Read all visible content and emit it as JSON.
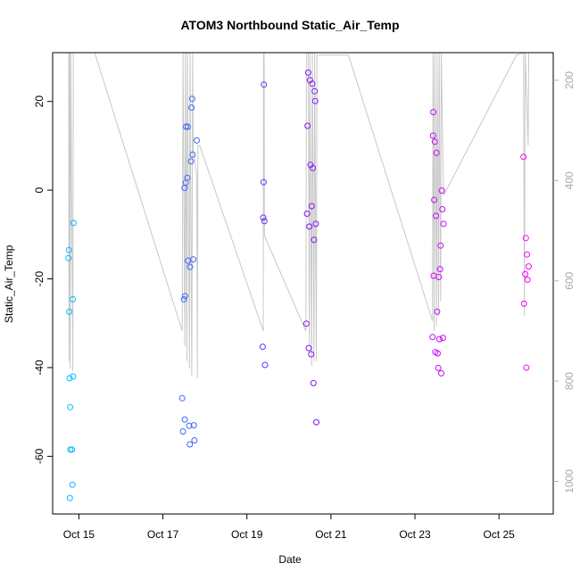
{
  "chart_data": {
    "type": "scatter",
    "title": "ATOM3 Northbound Static_Air_Temp",
    "xlabel": "Date",
    "ylabel": "Static_Air_Temp",
    "x_ticks": [
      "Oct 15",
      "Oct 17",
      "Oct 19",
      "Oct 21",
      "Oct 23",
      "Oct 25"
    ],
    "y_ticks": [
      "-60",
      "-40",
      "-20",
      "0",
      "20"
    ],
    "y_ticks_right": [
      "200",
      "400",
      "600",
      "800",
      "1000"
    ],
    "xlim": [
      "2016-10-14 09:00",
      "2016-10-26 07:00"
    ],
    "ylim": [
      -73,
      31
    ],
    "ylim_right": [
      1065,
      145
    ],
    "grid": false,
    "colors": {
      "points_start": "#00BFFF",
      "points_mid": "#7A18F0",
      "points_end": "#FF00FF",
      "pressure_line": "#C8C8C8"
    },
    "series": [
      {
        "values": [
          {
            "x": "2016-10-14 18:00",
            "y": -15.3
          },
          {
            "x": "2016-10-14 18:20",
            "y": -13.5
          },
          {
            "x": "2016-10-14 18:30",
            "y": -27.4
          },
          {
            "x": "2016-10-14 18:40",
            "y": -42.4
          },
          {
            "x": "2016-10-14 19:00",
            "y": -48.9
          },
          {
            "x": "2016-10-14 19:10",
            "y": -58.5
          },
          {
            "x": "2016-10-14 18:50",
            "y": -69.4
          },
          {
            "x": "2016-10-14 20:00",
            "y": -58.5
          },
          {
            "x": "2016-10-14 20:20",
            "y": -66.4
          },
          {
            "x": "2016-10-14 20:40",
            "y": -42.0
          },
          {
            "x": "2016-10-14 20:30",
            "y": -24.6
          },
          {
            "x": "2016-10-14 21:00",
            "y": -7.4
          },
          {
            "x": "2016-10-17 11:00",
            "y": -46.9
          },
          {
            "x": "2016-10-17 11:30",
            "y": -54.4
          },
          {
            "x": "2016-10-17 12:00",
            "y": -24.6
          },
          {
            "x": "2016-10-17 12:30",
            "y": -51.7
          },
          {
            "x": "2016-10-17 12:40",
            "y": -23.9
          },
          {
            "x": "2016-10-17 12:20",
            "y": 0.5
          },
          {
            "x": "2016-10-17 13:00",
            "y": 1.7
          },
          {
            "x": "2016-10-17 13:10",
            "y": 14.3
          },
          {
            "x": "2016-10-17 14:00",
            "y": 2.8
          },
          {
            "x": "2016-10-17 14:10",
            "y": 14.3
          },
          {
            "x": "2016-10-17 14:20",
            "y": -15.9
          },
          {
            "x": "2016-10-17 15:00",
            "y": -53.1
          },
          {
            "x": "2016-10-17 15:20",
            "y": -57.3
          },
          {
            "x": "2016-10-17 15:30",
            "y": -17.3
          },
          {
            "x": "2016-10-17 16:00",
            "y": 6.5
          },
          {
            "x": "2016-10-17 16:20",
            "y": 18.6
          },
          {
            "x": "2016-10-17 16:40",
            "y": 20.6
          },
          {
            "x": "2016-10-17 17:00",
            "y": 8.0
          },
          {
            "x": "2016-10-17 17:20",
            "y": -15.6
          },
          {
            "x": "2016-10-17 17:40",
            "y": -53.0
          },
          {
            "x": "2016-10-17 18:00",
            "y": -56.4
          },
          {
            "x": "2016-10-17 19:20",
            "y": 11.2
          },
          {
            "x": "2016-10-19 09:00",
            "y": -35.3
          },
          {
            "x": "2016-10-19 09:20",
            "y": -6.2
          },
          {
            "x": "2016-10-19 09:30",
            "y": 1.8
          },
          {
            "x": "2016-10-19 09:40",
            "y": 23.8
          },
          {
            "x": "2016-10-19 10:00",
            "y": -7.0
          },
          {
            "x": "2016-10-19 10:20",
            "y": -39.4
          },
          {
            "x": "2016-10-20 10:00",
            "y": -30.1
          },
          {
            "x": "2016-10-20 10:20",
            "y": -5.3
          },
          {
            "x": "2016-10-20 10:40",
            "y": 14.5
          },
          {
            "x": "2016-10-20 11:00",
            "y": 26.5
          },
          {
            "x": "2016-10-20 11:20",
            "y": -35.6
          },
          {
            "x": "2016-10-20 11:40",
            "y": -8.2
          },
          {
            "x": "2016-10-20 12:00",
            "y": 24.8
          },
          {
            "x": "2016-10-20 12:20",
            "y": 5.7
          },
          {
            "x": "2016-10-20 12:40",
            "y": -37.0
          },
          {
            "x": "2016-10-20 13:00",
            "y": -3.6
          },
          {
            "x": "2016-10-20 13:20",
            "y": 24.0
          },
          {
            "x": "2016-10-20 13:40",
            "y": 5.0
          },
          {
            "x": "2016-10-20 14:00",
            "y": -43.5
          },
          {
            "x": "2016-10-20 14:20",
            "y": -11.2
          },
          {
            "x": "2016-10-20 14:40",
            "y": 22.3
          },
          {
            "x": "2016-10-20 15:00",
            "y": 20.1
          },
          {
            "x": "2016-10-20 15:20",
            "y": -7.6
          },
          {
            "x": "2016-10-20 15:40",
            "y": -52.3
          },
          {
            "x": "2016-10-23 10:00",
            "y": -33.1
          },
          {
            "x": "2016-10-23 10:20",
            "y": 12.3
          },
          {
            "x": "2016-10-23 10:30",
            "y": 17.6
          },
          {
            "x": "2016-10-23 10:40",
            "y": -19.3
          },
          {
            "x": "2016-10-23 11:00",
            "y": -2.2
          },
          {
            "x": "2016-10-23 11:20",
            "y": 10.9
          },
          {
            "x": "2016-10-23 11:40",
            "y": -36.5
          },
          {
            "x": "2016-10-23 12:00",
            "y": -5.8
          },
          {
            "x": "2016-10-23 12:20",
            "y": 8.4
          },
          {
            "x": "2016-10-23 12:40",
            "y": -27.4
          },
          {
            "x": "2016-10-23 13:00",
            "y": -36.8
          },
          {
            "x": "2016-10-23 13:20",
            "y": -40.1
          },
          {
            "x": "2016-10-23 13:40",
            "y": -19.6
          },
          {
            "x": "2016-10-23 14:00",
            "y": -33.6
          },
          {
            "x": "2016-10-23 14:20",
            "y": -17.8
          },
          {
            "x": "2016-10-23 14:40",
            "y": -12.5
          },
          {
            "x": "2016-10-23 15:00",
            "y": -41.3
          },
          {
            "x": "2016-10-23 15:20",
            "y": -0.1
          },
          {
            "x": "2016-10-23 15:40",
            "y": -4.3
          },
          {
            "x": "2016-10-23 16:00",
            "y": -33.3
          },
          {
            "x": "2016-10-23 16:20",
            "y": -7.6
          },
          {
            "x": "2016-10-25 14:00",
            "y": 7.5
          },
          {
            "x": "2016-10-25 14:20",
            "y": -25.6
          },
          {
            "x": "2016-10-25 15:00",
            "y": -18.9
          },
          {
            "x": "2016-10-25 15:20",
            "y": -10.8
          },
          {
            "x": "2016-10-25 15:40",
            "y": -40.0
          },
          {
            "x": "2016-10-25 16:00",
            "y": -14.5
          },
          {
            "x": "2016-10-25 16:20",
            "y": -20.2
          },
          {
            "x": "2016-10-25 17:00",
            "y": -17.2
          }
        ]
      }
    ]
  }
}
